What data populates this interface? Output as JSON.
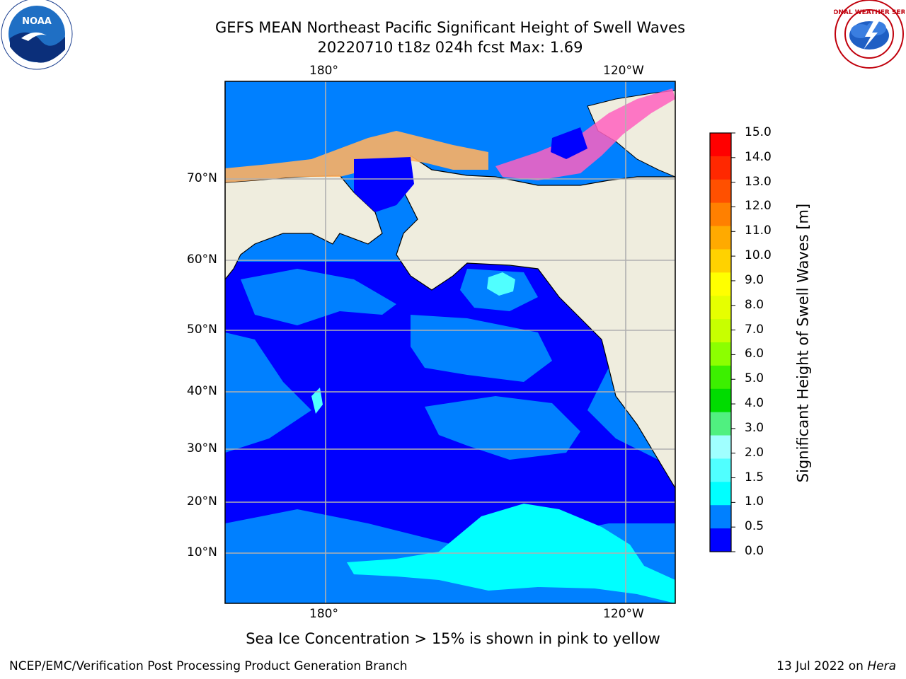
{
  "header": {
    "title_line1": "GEFS MEAN Northeast Pacific Significant Height of Swell Waves",
    "title_line2": "20220710 t18z 024h fcst   Max: 1.69"
  },
  "logos": {
    "left": {
      "name": "NOARA logo",
      "text": "NOAA"
    },
    "right": {
      "name": "National Weather Service logo",
      "text": "NATIONAL WEATHER SERVICE"
    }
  },
  "map": {
    "top_labels": [
      "180°",
      "120°W"
    ],
    "bottom_labels": [
      "180°",
      "120°W"
    ],
    "lat_labels": [
      "70°N",
      "60°N",
      "50°N",
      "40°N",
      "30°N",
      "20°N",
      "10°N"
    ],
    "colors": {
      "land": "#efedde",
      "ocean_low": "#0000ff",
      "ocean_mid": "#0080ff",
      "ocean_high": "#00ffff",
      "ice": "#ffa040"
    }
  },
  "colorbar": {
    "labels": [
      "15.0",
      "14.0",
      "13.0",
      "12.0",
      "11.0",
      "10.0",
      "9.0",
      "8.0",
      "7.0",
      "6.0",
      "5.0",
      "4.0",
      "3.0",
      "2.0",
      "1.5",
      "1.0",
      "0.5",
      "0.0"
    ],
    "colors": [
      "#ff0000",
      "#ff2800",
      "#ff5000",
      "#ff8000",
      "#ffaa00",
      "#ffd200",
      "#ffff00",
      "#e6ff00",
      "#c8ff00",
      "#8cff00",
      "#3cf000",
      "#00dc00",
      "#50f080",
      "#a0ffff",
      "#50ffff",
      "#00ffff",
      "#0080ff",
      "#0000ff"
    ],
    "title": "Significant Height of Swell Waves [m]"
  },
  "caption": "Sea Ice Concentration > 15% is shown in pink to yellow",
  "footer": {
    "left": "NCEP/EMC/Verification Post Processing Product Generation Branch",
    "right_date": "13 Jul 2022 on ",
    "right_host": "Hera"
  }
}
